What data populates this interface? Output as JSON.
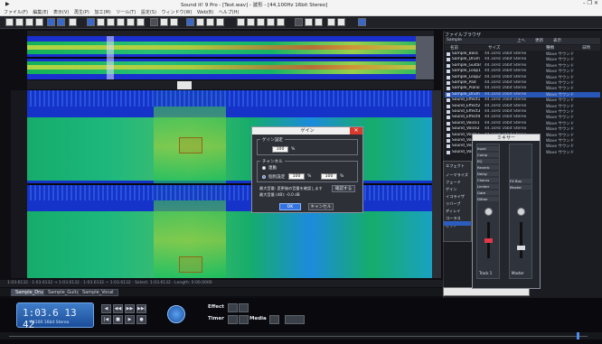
{
  "window": {
    "title": "Sound it! 9 Pro - [Test.wav] - 波形 - [44,100Hz 16bit Stereo]",
    "controls": "–  ❐  ✕"
  },
  "menu": [
    "ファイル(F)",
    "編集(E)",
    "表示(V)",
    "再生(P)",
    "加工(M)",
    "ツール(T)",
    "設定(S)",
    "ウィンドウ(W)",
    "Web(B)",
    "ヘルプ(H)"
  ],
  "status_line": "1:03.6132  ·  1:03.6132 → 1:03.6132  ·  1:03.6132 ~ 1:03.6132  ·  Select: 1:03.6132  ·  Length: 0:00.0000",
  "tabs": [
    {
      "label": "Sample_Drum",
      "active": true
    },
    {
      "label": "Sample_Guitar",
      "active": false
    },
    {
      "label": "Sample_Vocal",
      "active": false
    }
  ],
  "transport": {
    "time": "1:03.6 13 42",
    "time_info": "44100 16bit Stereo",
    "effect_label": "Effect",
    "timer_label": "Timer",
    "media_label": "Media",
    "buttons": [
      "◀",
      "◀◀",
      "▶▶",
      "▶▶|",
      "|◀",
      "■",
      "▶",
      "●"
    ]
  },
  "file_panel": {
    "title": "ファイルブラウザ",
    "path": "Sample",
    "toolbar": [
      "上へ",
      "更新",
      "表示"
    ],
    "columns": [
      "名前",
      "サイズ",
      "種類",
      "日時"
    ],
    "files": [
      {
        "name": "Sample_Bass",
        "info": "44.1kHz 16bit Stereo",
        "kind": "Wave サウンド",
        "sel": false
      },
      {
        "name": "Sample_Drum",
        "info": "44.1kHz 16bit Stereo",
        "kind": "Wave サウンド",
        "sel": false
      },
      {
        "name": "Sample_Guitar",
        "info": "44.1kHz 16bit Stereo",
        "kind": "Wave サウンド",
        "sel": false
      },
      {
        "name": "Sample_Loop1",
        "info": "44.1kHz 16bit Stereo",
        "kind": "Wave サウンド",
        "sel": false
      },
      {
        "name": "Sample_Loop2",
        "info": "44.1kHz 16bit Stereo",
        "kind": "Wave サウンド",
        "sel": false
      },
      {
        "name": "Sample_Pad",
        "info": "44.1kHz 16bit Stereo",
        "kind": "Wave サウンド",
        "sel": false
      },
      {
        "name": "Sample_Piano",
        "info": "44.1kHz 16bit Stereo",
        "kind": "Wave サウンド",
        "sel": false
      },
      {
        "name": "Sample_Drum",
        "info": "44.1kHz 16bit Stereo",
        "kind": "Wave サウンド",
        "sel": true
      },
      {
        "name": "Sound_Effect1",
        "info": "44.1kHz 16bit Stereo",
        "kind": "Wave サウンド",
        "sel": false
      },
      {
        "name": "Sound_Effect2",
        "info": "44.1kHz 16bit Stereo",
        "kind": "Wave サウンド",
        "sel": false
      },
      {
        "name": "Sound_Effect3",
        "info": "44.1kHz 16bit Stereo",
        "kind": "Wave サウンド",
        "sel": false
      },
      {
        "name": "Sound_Effect4",
        "info": "44.1kHz 16bit Stereo",
        "kind": "Wave サウンド",
        "sel": false
      },
      {
        "name": "Sound_Voice1",
        "info": "44.1kHz 16bit Stereo",
        "kind": "Wave サウンド",
        "sel": false
      },
      {
        "name": "Sound_Voice2",
        "info": "44.1kHz 16bit Stereo",
        "kind": "Wave サウンド",
        "sel": false
      },
      {
        "name": "Sound_Voice3",
        "info": "44.1kHz 16bit Stereo",
        "kind": "Wave サウンド",
        "sel": false
      },
      {
        "name": "Sound_Voice4",
        "info": "44.1kHz 16bit Stereo",
        "kind": "Wave サウンド",
        "sel": false
      },
      {
        "name": "Sound_Voice5",
        "info": "44.1kHz 16bit Stereo",
        "kind": "Wave サウンド",
        "sel": false
      },
      {
        "name": "Sound_Voice6",
        "info": "44.1kHz 16bit Stereo",
        "kind": "Wave サウンド",
        "sel": false
      }
    ]
  },
  "effect_dock": {
    "items": [
      "エフェクト",
      "ノーマライズ",
      "フェード",
      "ゲイン",
      "イコライザ",
      "リバーブ",
      "ディレイ",
      "コーラス",
      "ピッチ"
    ]
  },
  "mixer": {
    "title": "ミキサー",
    "left_items": [
      "Input",
      "Comp",
      "EQ",
      "Reverb",
      "Delay",
      "Chorus",
      "Limiter",
      "Gate",
      "Dither"
    ],
    "right_items": [
      "FX Bus",
      "Master"
    ],
    "left_caption": "Track 1",
    "right_caption": "Master"
  },
  "dialog": {
    "title": "ゲイン",
    "close": "✕",
    "group1_label": "ゲイン設定",
    "gain_value": "100",
    "gain_unit": "%",
    "group2_label": "チャンネル",
    "radio_label_1": "連動",
    "radio_label_2": "個別設定",
    "left_value": "100",
    "right_value": "100",
    "channel_unit": "%",
    "note_line_1": "最大音量: 変更後の音量を確認します",
    "note_line_2": "最大音量 (dB): -0.0 dB",
    "check_button": "確認する",
    "ok_button": "OK",
    "cancel_button": "キャンセル"
  },
  "colors": {
    "spectrogram_low": "#1533c9",
    "spectrogram_mid": "#16c25a",
    "spectrogram_high": "#f0e23a",
    "accent": "#3573e0"
  }
}
